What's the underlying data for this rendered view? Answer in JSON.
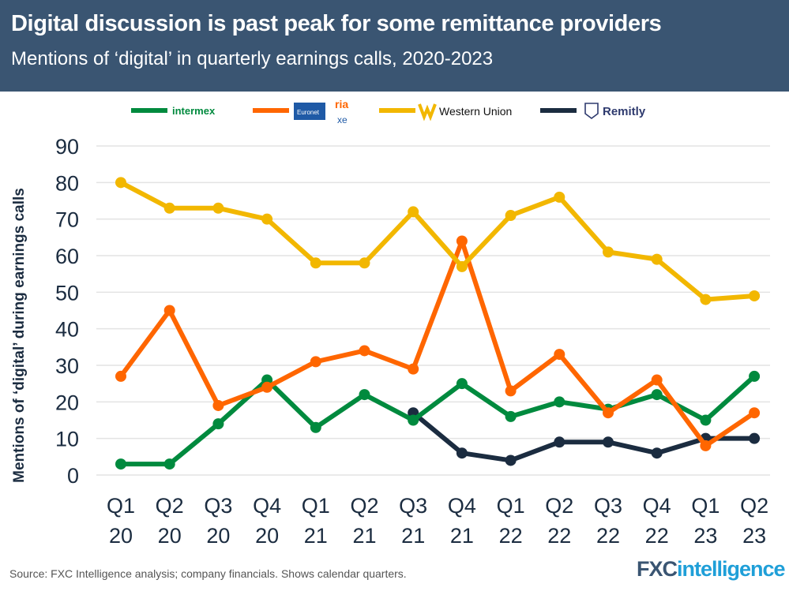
{
  "header": {
    "title": "Digital discussion is past peak for some remittance providers",
    "subtitle": "Mentions of ‘digital’ in quarterly earnings calls, 2020-2023"
  },
  "footer": {
    "source": "Source: FXC Intelligence analysis; company financials. Shows calendar quarters.",
    "brand_a": "FXC",
    "brand_b": "intelligence"
  },
  "chart_data": {
    "type": "line",
    "title": "Digital discussion is past peak for some remittance providers",
    "subtitle": "Mentions of ‘digital’ in quarterly earnings calls, 2020-2023",
    "ylabel": "Mentions of ‘digital’ during earnings calls",
    "xlabel": "",
    "ylim": [
      0,
      90
    ],
    "yticks": [
      0,
      10,
      20,
      30,
      40,
      50,
      60,
      70,
      80,
      90
    ],
    "grid": true,
    "legend": "top",
    "categories": [
      [
        "Q1",
        "20"
      ],
      [
        "Q2",
        "20"
      ],
      [
        "Q3",
        "20"
      ],
      [
        "Q4",
        "20"
      ],
      [
        "Q1",
        "21"
      ],
      [
        "Q2",
        "21"
      ],
      [
        "Q3",
        "21"
      ],
      [
        "Q4",
        "21"
      ],
      [
        "Q1",
        "22"
      ],
      [
        "Q2",
        "22"
      ],
      [
        "Q3",
        "22"
      ],
      [
        "Q4",
        "22"
      ],
      [
        "Q1",
        "23"
      ],
      [
        "Q2",
        "23"
      ]
    ],
    "series": [
      {
        "name": "Western Union",
        "color": "#f2b700",
        "values": [
          80,
          73,
          73,
          70,
          58,
          58,
          72,
          57,
          71,
          76,
          61,
          59,
          48,
          49
        ]
      },
      {
        "name": "Euronet (Ria, Xe)",
        "color": "#ff6600",
        "values": [
          27,
          45,
          19,
          24,
          31,
          34,
          29,
          64,
          23,
          33,
          17,
          26,
          8,
          17
        ]
      },
      {
        "name": "Intermex",
        "color": "#008a3e",
        "values": [
          3,
          3,
          14,
          26,
          13,
          22,
          15,
          25,
          16,
          20,
          18,
          22,
          15,
          27
        ]
      },
      {
        "name": "Remitly",
        "color": "#1b2c40",
        "values": [
          null,
          null,
          null,
          null,
          null,
          null,
          17,
          6,
          4,
          9,
          9,
          6,
          10,
          10
        ]
      }
    ],
    "legend_logos": [
      "intermex",
      "Euronet",
      "ria",
      "xe",
      "Western Union",
      "Remitly"
    ]
  }
}
